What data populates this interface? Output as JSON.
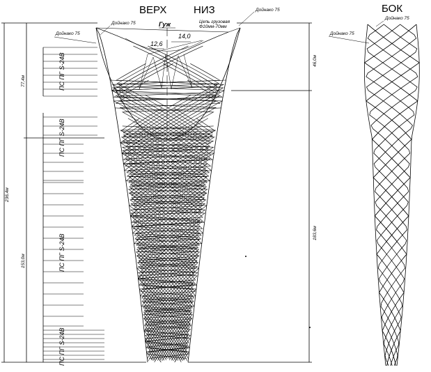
{
  "headings": {
    "top": "ВЕРХ",
    "bottom": "НИЗ",
    "side": "БОК"
  },
  "labels": {
    "dojinok_left": "Дойнако 75",
    "dojinok_center": "Дойнако 75",
    "dojinok_right": "Дойнако 75",
    "dojinok_side": "Дойнако 75",
    "dojinok_side_top": "Дойнако 75",
    "chain": "Цепь грузовая",
    "chain_spec": "Ф10мм-70мм",
    "guzh": "Гуж",
    "val_a": "12,6",
    "val_b": "14,0"
  },
  "dimensions": {
    "total": "236,4м",
    "upper": "77,4м",
    "lower": "153,0м",
    "right_top": "46,0м",
    "right_bottom": "183,6м"
  },
  "panels": [
    {
      "text": "ПС ПГ S-24В"
    },
    {
      "text": "ПС ПГ S-24В"
    },
    {
      "text": "ПС ПГ S-24В"
    },
    {
      "text": "ПС ПГ S-24В"
    }
  ]
}
